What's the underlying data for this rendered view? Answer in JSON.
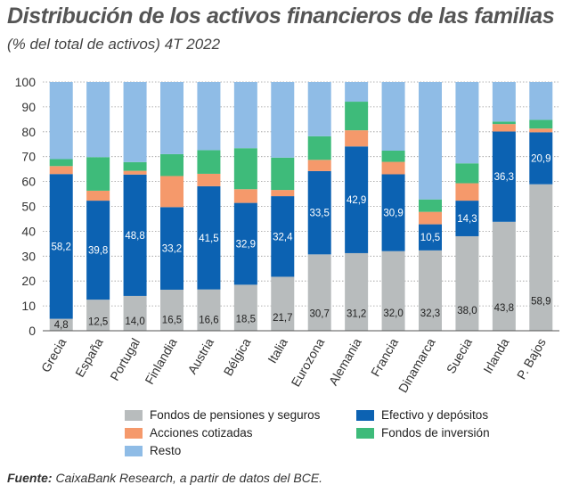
{
  "title": "Distribución de los activos financieros de las familias",
  "subtitle": "(% del total de activos) 4T 2022",
  "source_label": "Fuente:",
  "source_text": "CaixaBank Research, a partir de datos del BCE.",
  "chart_data": {
    "type": "bar",
    "stacked": true,
    "categories": [
      "Grecia",
      "España",
      "Portugal",
      "Finlandia",
      "Austria",
      "Bélgica",
      "Italia",
      "Eurozona",
      "Alemania",
      "Francia",
      "Dinamarca",
      "Suecia",
      "Irlanda",
      "P. Bajos"
    ],
    "ylim": [
      0,
      100
    ],
    "yticks": [
      "0",
      "10",
      "20",
      "30",
      "40",
      "50",
      "60",
      "70",
      "80",
      "90",
      "100"
    ],
    "grid": true,
    "legend_position": "bottom",
    "series": [
      {
        "name": "Fondos de pensiones y seguros",
        "color": "#b8bcbd",
        "label_color": "#222222",
        "values": [
          4.8,
          12.5,
          14.0,
          16.5,
          16.6,
          18.5,
          21.7,
          30.7,
          31.2,
          32.0,
          32.3,
          38.0,
          43.8,
          58.9
        ],
        "labels": [
          "4,8",
          "12,5",
          "14,0",
          "16,5",
          "16,6",
          "18,5",
          "21,7",
          "30,7",
          "31,2",
          "32,0",
          "32,3",
          "38,0",
          "43,8",
          "58,9"
        ]
      },
      {
        "name": "Efectivo y depósitos",
        "color": "#0c62b2",
        "label_color": "#ffffff",
        "values": [
          58.2,
          39.8,
          48.8,
          33.2,
          41.5,
          32.9,
          32.4,
          33.5,
          42.9,
          30.9,
          10.5,
          14.3,
          36.3,
          20.9
        ],
        "labels": [
          "58,2",
          "39,8",
          "48,8",
          "33,2",
          "41,5",
          "32,9",
          "32,4",
          "33,5",
          "42,9",
          "30,9",
          "10,5",
          "14,3",
          "36,3",
          "20,9"
        ]
      },
      {
        "name": "Acciones cotizadas",
        "color": "#f5996b",
        "values": [
          3.2,
          4.0,
          1.5,
          12.5,
          5.0,
          5.5,
          2.5,
          4.5,
          6.5,
          5.0,
          5.0,
          7.0,
          3.0,
          1.5
        ]
      },
      {
        "name": "Fondos de inversión",
        "color": "#3ebb7a",
        "values": [
          2.8,
          13.5,
          3.5,
          8.8,
          9.5,
          16.5,
          13.0,
          9.5,
          11.5,
          4.5,
          5.0,
          8.0,
          1.0,
          3.5
        ]
      },
      {
        "name": "Resto",
        "color": "#8fbce6",
        "values": [
          31.0,
          30.2,
          32.2,
          29.0,
          27.4,
          26.6,
          30.4,
          21.8,
          7.9,
          27.6,
          47.2,
          32.7,
          15.9,
          15.2
        ]
      }
    ],
    "legend_order": [
      "Fondos de pensiones y seguros",
      "Efectivo y depósitos",
      "Acciones cotizadas",
      "Fondos de inversión",
      "Resto"
    ]
  }
}
